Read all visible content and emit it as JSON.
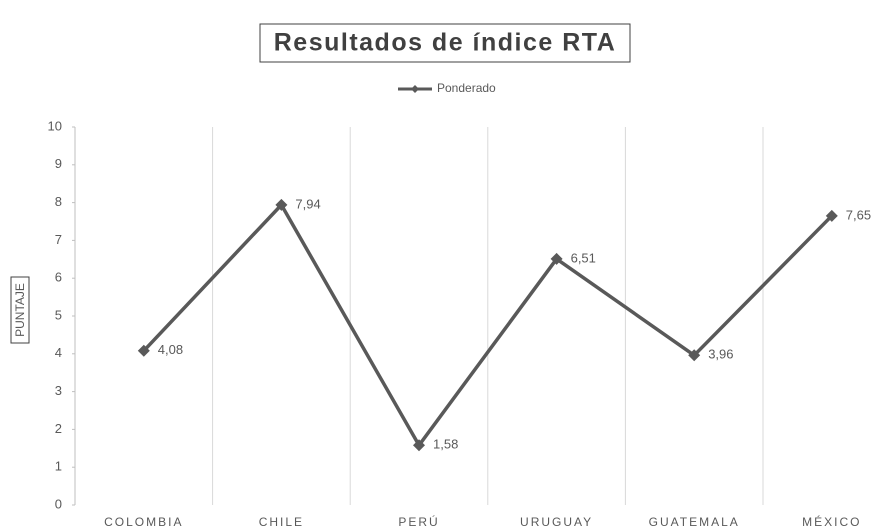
{
  "chart_data": {
    "type": "line",
    "title": "Resultados de índice RTA",
    "y_label": "PUNTAJE",
    "categories": [
      "COLOMBIA",
      "CHILE",
      "PERÚ",
      "URUGUAY",
      "GUATEMALA",
      "MÉXICO"
    ],
    "series": [
      {
        "name": "Ponderado",
        "color": "#595959",
        "values": [
          4.08,
          7.94,
          1.58,
          6.51,
          3.96,
          7.65
        ],
        "value_labels": [
          "4,08",
          "7,94",
          "1,58",
          "6,51",
          "3,96",
          "7,65"
        ]
      }
    ],
    "ylim": [
      0,
      10
    ],
    "yticks": [
      0,
      1,
      2,
      3,
      4,
      5,
      6,
      7,
      8,
      9,
      10
    ],
    "legend": "top"
  }
}
